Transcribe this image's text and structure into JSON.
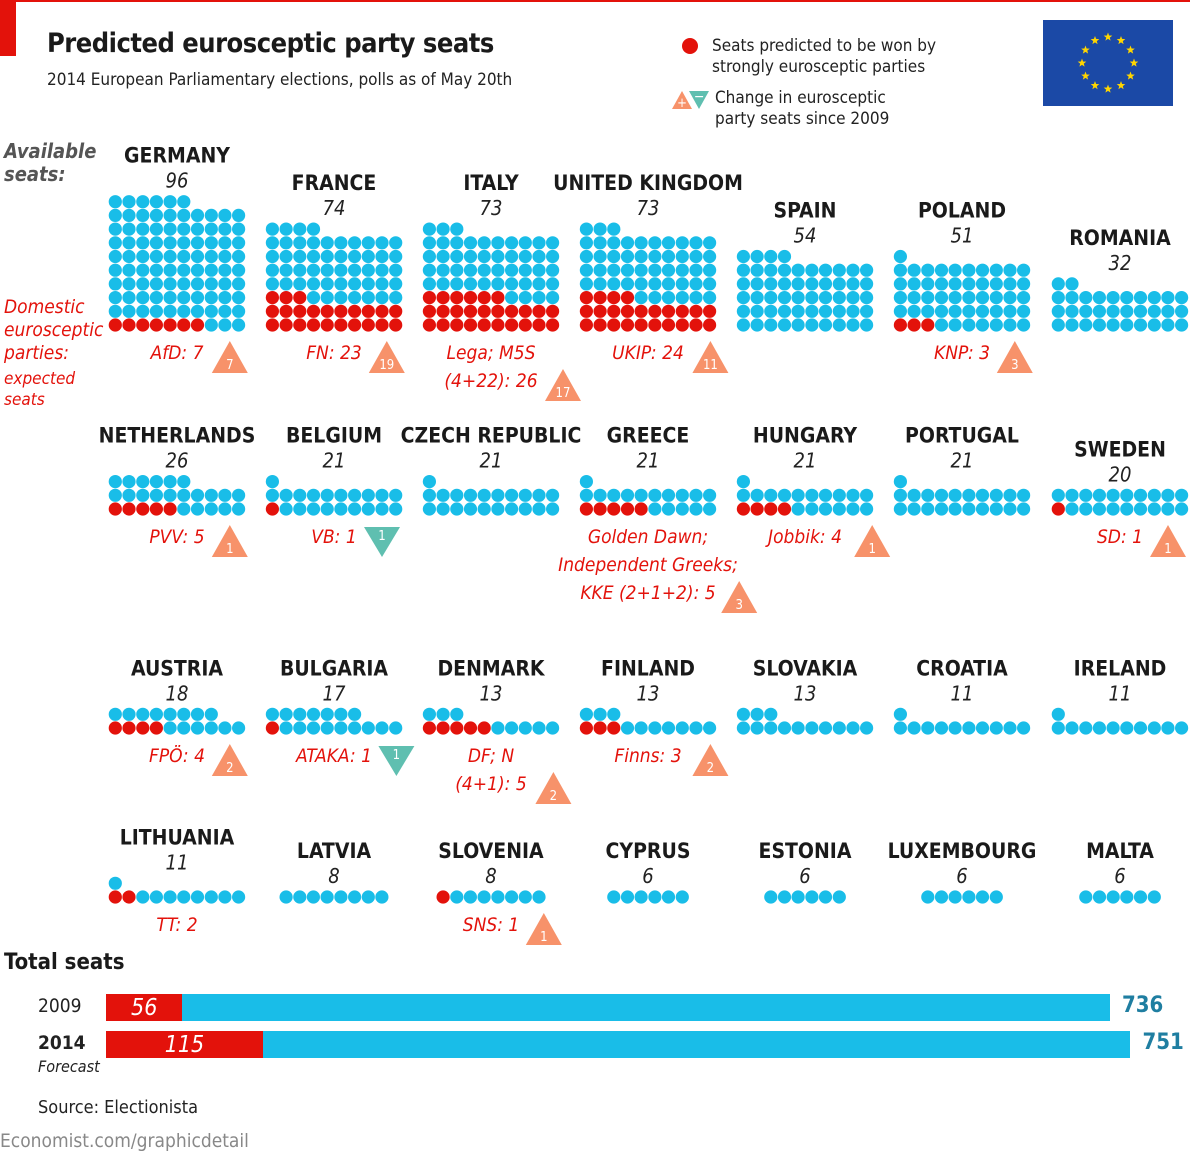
{
  "header": {
    "title": "Predicted eurosceptic party seats",
    "subtitle": "2014 European Parliamentary elections, polls as of May 20th"
  },
  "legend": {
    "dot_label_line1": "Seats predicted to be won by",
    "dot_label_line2": "strongly eurosceptic parties",
    "change_label_line1": "Change in eurosceptic",
    "change_label_line2": "party seats since 2009",
    "plus": "+",
    "minus": "−"
  },
  "side_labels": {
    "available_line1": "Available",
    "available_line2": "seats:",
    "domestic_line1": "Domestic",
    "domestic_line2": "eurosceptic",
    "domestic_line3": "parties:",
    "expected_line1": "expected",
    "expected_line2": "seats"
  },
  "colors": {
    "eurosceptic": "#e3120b",
    "other": "#19bde8",
    "increase": "#f7926a",
    "decrease": "#5fbfb0",
    "accent": "#e3120b",
    "flag_blue": "#1b49a6",
    "flag_star": "#ffd500",
    "total_label": "#1f7ea1"
  },
  "chart_data": {
    "type": "waffle",
    "title": "Predicted eurosceptic party seats",
    "subtitle": "2014 European Parliamentary elections, polls as of May 20th",
    "countries": [
      {
        "name": "GERMANY",
        "seats": 96,
        "eurosceptic": 7,
        "party_lines": [
          "AfD: 7"
        ],
        "change": 7
      },
      {
        "name": "FRANCE",
        "seats": 74,
        "eurosceptic": 23,
        "party_lines": [
          "FN: 23"
        ],
        "change": 19
      },
      {
        "name": "ITALY",
        "seats": 73,
        "eurosceptic": 26,
        "party_lines": [
          "Lega; M5S",
          "(4+22): 26"
        ],
        "change": 17
      },
      {
        "name": "UNITED KINGDOM",
        "seats": 73,
        "eurosceptic": 24,
        "party_lines": [
          "UKIP: 24"
        ],
        "change": 11
      },
      {
        "name": "SPAIN",
        "seats": 54,
        "eurosceptic": 0,
        "party_lines": [],
        "change": null
      },
      {
        "name": "POLAND",
        "seats": 51,
        "eurosceptic": 3,
        "party_lines": [
          "KNP: 3"
        ],
        "change": 3
      },
      {
        "name": "ROMANIA",
        "seats": 32,
        "eurosceptic": 0,
        "party_lines": [],
        "change": null
      },
      {
        "name": "NETHERLANDS",
        "seats": 26,
        "eurosceptic": 5,
        "party_lines": [
          "PVV: 5"
        ],
        "change": 1
      },
      {
        "name": "BELGIUM",
        "seats": 21,
        "eurosceptic": 1,
        "party_lines": [
          "VB: 1"
        ],
        "change": -1
      },
      {
        "name": "CZECH REPUBLIC",
        "seats": 21,
        "eurosceptic": 0,
        "party_lines": [],
        "change": null
      },
      {
        "name": "GREECE",
        "seats": 21,
        "eurosceptic": 5,
        "party_lines": [
          "Golden Dawn;",
          "Independent Greeks;",
          "KKE (2+1+2): 5"
        ],
        "change": 3
      },
      {
        "name": "HUNGARY",
        "seats": 21,
        "eurosceptic": 4,
        "party_lines": [
          "Jobbik: 4"
        ],
        "change": 1
      },
      {
        "name": "PORTUGAL",
        "seats": 21,
        "eurosceptic": 0,
        "party_lines": [],
        "change": null
      },
      {
        "name": "SWEDEN",
        "seats": 20,
        "eurosceptic": 1,
        "party_lines": [
          "SD: 1"
        ],
        "change": 1
      },
      {
        "name": "AUSTRIA",
        "seats": 18,
        "eurosceptic": 4,
        "party_lines": [
          "FPÖ: 4"
        ],
        "change": 2
      },
      {
        "name": "BULGARIA",
        "seats": 17,
        "eurosceptic": 1,
        "party_lines": [
          "ATAKA: 1"
        ],
        "change": -1
      },
      {
        "name": "DENMARK",
        "seats": 13,
        "eurosceptic": 5,
        "party_lines": [
          "DF; N",
          "(4+1): 5"
        ],
        "change": 2
      },
      {
        "name": "FINLAND",
        "seats": 13,
        "eurosceptic": 3,
        "party_lines": [
          "Finns: 3"
        ],
        "change": 2
      },
      {
        "name": "SLOVAKIA",
        "seats": 13,
        "eurosceptic": 0,
        "party_lines": [],
        "change": null
      },
      {
        "name": "CROATIA",
        "seats": 11,
        "eurosceptic": 0,
        "party_lines": [],
        "change": null
      },
      {
        "name": "IRELAND",
        "seats": 11,
        "eurosceptic": 0,
        "party_lines": [],
        "change": null
      },
      {
        "name": "LITHUANIA",
        "seats": 11,
        "eurosceptic": 2,
        "party_lines": [
          "TT: 2"
        ],
        "change": null
      },
      {
        "name": "LATVIA",
        "seats": 8,
        "eurosceptic": 0,
        "party_lines": [],
        "change": null
      },
      {
        "name": "SLOVENIA",
        "seats": 8,
        "eurosceptic": 1,
        "party_lines": [
          "SNS: 1"
        ],
        "change": 1
      },
      {
        "name": "CYPRUS",
        "seats": 6,
        "eurosceptic": 0,
        "party_lines": [],
        "change": null
      },
      {
        "name": "ESTONIA",
        "seats": 6,
        "eurosceptic": 0,
        "party_lines": [],
        "change": null
      },
      {
        "name": "LUXEMBOURG",
        "seats": 6,
        "eurosceptic": 0,
        "party_lines": [],
        "change": null
      },
      {
        "name": "MALTA",
        "seats": 6,
        "eurosceptic": 0,
        "party_lines": [],
        "change": null
      }
    ],
    "totals": {
      "title": "Total seats",
      "rows": [
        {
          "year": "2009",
          "eurosceptic": 56,
          "total": 736,
          "note": ""
        },
        {
          "year": "2014",
          "eurosceptic": 115,
          "total": 751,
          "note": "Forecast"
        }
      ]
    }
  },
  "footer": {
    "source": "Source: Electionista",
    "url": "Economist.com/graphicdetail"
  }
}
